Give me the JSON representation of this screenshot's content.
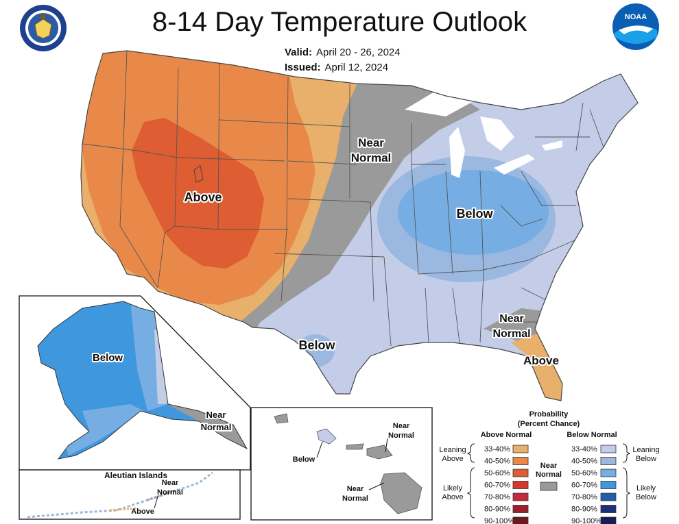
{
  "header": {
    "title": "8-14 Day Temperature Outlook",
    "valid_label": "Valid:",
    "valid_value": "April 20 - 26, 2024",
    "issued_label": "Issued:",
    "issued_value": "April 12, 2024",
    "left_logo": "department-of-commerce-seal-icon",
    "right_logo": "noaa-logo-icon",
    "right_logo_text": "NOAA"
  },
  "map_labels": {
    "west_above": "Above",
    "plains_near": [
      "Near",
      "Normal"
    ],
    "east_below": "Below",
    "texas_below": "Below",
    "southeast_near": [
      "Near",
      "Normal"
    ],
    "florida_above": "Above"
  },
  "alaska": {
    "below": "Below",
    "near": [
      "Near",
      "Normal"
    ],
    "aleutian_title": "Aleutian Islands",
    "aleutian_near": [
      "Near",
      "Normal"
    ],
    "aleutian_above": "Above"
  },
  "hawaii": {
    "below": "Below",
    "near_top": [
      "Near",
      "Normal"
    ],
    "near_bottom": [
      "Near",
      "Normal"
    ]
  },
  "legend": {
    "title": [
      "Probability",
      "(Percent Chance)"
    ],
    "above_header": "Above Normal",
    "below_header": "Below Normal",
    "near_label": [
      "Near",
      "Normal"
    ],
    "leaning_above": [
      "Leaning",
      "Above"
    ],
    "likely_above": [
      "Likely",
      "Above"
    ],
    "leaning_below": [
      "Leaning",
      "Below"
    ],
    "likely_below": [
      "Likely",
      "Below"
    ],
    "above_bins": [
      {
        "label": "33-40%",
        "color": "#e8b06a"
      },
      {
        "label": "40-50%",
        "color": "#e8894a"
      },
      {
        "label": "50-60%",
        "color": "#de5d32"
      },
      {
        "label": "60-70%",
        "color": "#d6382c"
      },
      {
        "label": "70-80%",
        "color": "#c42a3e"
      },
      {
        "label": "80-90%",
        "color": "#9c1f2e"
      },
      {
        "label": "90-100%",
        "color": "#6a1a1a"
      }
    ],
    "below_bins": [
      {
        "label": "33-40%",
        "color": "#c3cde8"
      },
      {
        "label": "40-50%",
        "color": "#9ab8e0"
      },
      {
        "label": "50-60%",
        "color": "#76aee3"
      },
      {
        "label": "60-70%",
        "color": "#3f97de"
      },
      {
        "label": "70-80%",
        "color": "#1f5fa8"
      },
      {
        "label": "80-90%",
        "color": "#1d2f7a"
      },
      {
        "label": "90-100%",
        "color": "#1a1a55"
      }
    ],
    "near_color": "#9a9a9a"
  },
  "colors": {
    "above_33": "#e8b06a",
    "above_40": "#e8894a",
    "above_50": "#de5d32",
    "below_33": "#c3cde8",
    "below_40": "#9ab8e0",
    "below_50": "#76aee3",
    "below_60": "#3f97de",
    "near": "#9a9a9a",
    "state_line": "#555555"
  }
}
